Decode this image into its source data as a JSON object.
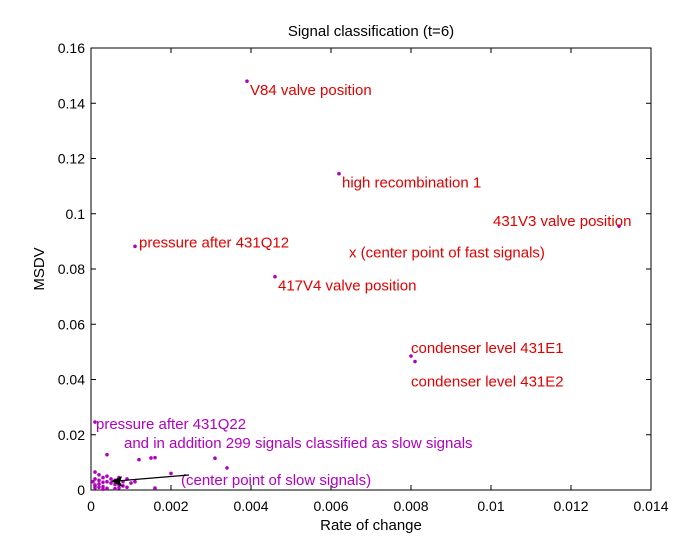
{
  "chart_data": {
    "type": "scatter",
    "title": "Signal classification (t=6)",
    "xlabel": "Rate of change",
    "ylabel": "MSDV",
    "xlim": [
      0,
      0.014
    ],
    "ylim": [
      0,
      0.16
    ],
    "grid": false,
    "xticks": [
      "0",
      "0.002",
      "0.004",
      "0.006",
      "0.008",
      "0.01",
      "0.012",
      "0.014"
    ],
    "yticks": [
      "0",
      "0.02",
      "0.04",
      "0.06",
      "0.08",
      "0.1",
      "0.12",
      "0.14",
      "0.16"
    ],
    "colors": {
      "fast": "#e00000",
      "slow": "#b000c0",
      "point": "#b000c0",
      "arrow": "#000000"
    },
    "fast_points": [
      {
        "x": 0.0039,
        "y": 0.148,
        "label": "V84 valve position"
      },
      {
        "x": 0.0062,
        "y": 0.1145,
        "label": "high recombination 1"
      },
      {
        "x": 0.0132,
        "y": 0.0955,
        "label": "431V3 valve position"
      },
      {
        "x": 0.0011,
        "y": 0.0882,
        "label": "pressure after 431Q12"
      },
      {
        "x": 0.0046,
        "y": 0.0772,
        "label": "417V4 valve position"
      },
      {
        "x": 0.008,
        "y": 0.0485,
        "label": "condenser level 431E1"
      },
      {
        "x": 0.0081,
        "y": 0.0465,
        "label": "condenser level 431E2"
      }
    ],
    "fast_center": {
      "x": 0.0066,
      "y": 0.0875,
      "label": "x (center point of fast signals)"
    },
    "slow_annotations": {
      "pressure": "pressure after 431Q22",
      "addition": "and in addition 299 signals classified as slow signals",
      "center": "(center point of slow signals)"
    },
    "slow_center": {
      "x": 0.0005,
      "y": 0.0032
    },
    "slow_points": [
      [
        0.0001,
        0.0246
      ],
      [
        0.0004,
        0.0128
      ],
      [
        0.0015,
        0.0116
      ],
      [
        0.0016,
        0.0117
      ],
      [
        0.0031,
        0.0115
      ],
      [
        0.0034,
        0.008
      ],
      [
        0.0012,
        0.011
      ],
      [
        0.002,
        0.006
      ],
      [
        0.0016,
        0.0007
      ],
      [
        0.0001,
        0.0065
      ],
      [
        0.0002,
        0.0055
      ],
      [
        0.0003,
        0.0045
      ],
      [
        0.0001,
        0.004
      ],
      [
        0.0002,
        0.0035
      ],
      [
        0.0004,
        0.003
      ],
      [
        0.0005,
        0.0025
      ],
      [
        0.0006,
        0.002
      ],
      [
        0.0007,
        0.0018
      ],
      [
        0.0008,
        0.0015
      ],
      [
        0.0003,
        0.0012
      ],
      [
        0.0002,
        0.001
      ],
      [
        0.0001,
        0.0008
      ],
      [
        0.0004,
        0.0006
      ],
      [
        0.0006,
        0.0005
      ],
      [
        0.0009,
        0.001
      ],
      [
        0.001,
        0.0025
      ],
      [
        0.0011,
        0.003
      ],
      [
        0.0003,
        0.0028
      ],
      [
        0.0002,
        0.0022
      ],
      [
        0.0001,
        0.0018
      ],
      [
        0.0005,
        0.004
      ],
      [
        0.0006,
        0.0035
      ],
      [
        0.0007,
        0.0045
      ],
      [
        0.0004,
        0.005
      ],
      [
        5e-05,
        0.003
      ],
      [
        0.0001,
        0.0015
      ],
      [
        0.0008,
        0.003
      ],
      [
        0.0009,
        0.004
      ],
      [
        0.0003,
        0.0003
      ],
      [
        0.0007,
        0.0008
      ]
    ]
  }
}
